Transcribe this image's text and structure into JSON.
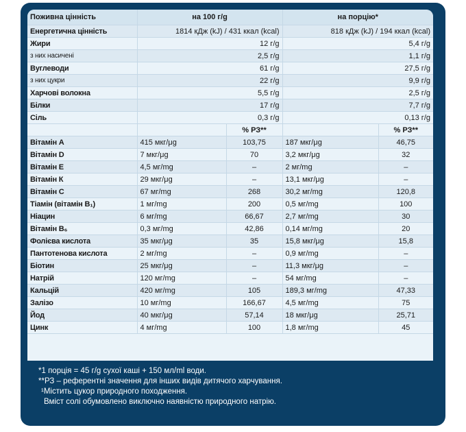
{
  "header": {
    "col1": "Поживна цінність",
    "col2": "на 100 г/g",
    "col3": "на порцію*"
  },
  "nutrients": [
    {
      "label": "Енергетична цінність",
      "per100": "1814 кДж (kJ) / 431 ккал (kcal)",
      "perServing": "818 кДж (kJ) / 194 ккал (kcal)",
      "sub": false
    },
    {
      "label": "Жири",
      "per100": "12 г/g",
      "perServing": "5,4 г/g",
      "sub": false
    },
    {
      "label": "з них насичені",
      "per100": "2,5 г/g",
      "perServing": "1,1 г/g",
      "sub": true
    },
    {
      "label": "Вуглеводи",
      "per100": "61 г/g",
      "perServing": "27,5 г/g",
      "sub": false
    },
    {
      "label": "з них цукри",
      "per100": "22 г/g",
      "perServing": "9,9 г/g",
      "sub": true
    },
    {
      "label": "Харчові волокна",
      "per100": "5,5 г/g",
      "perServing": "2,5 г/g",
      "sub": false
    },
    {
      "label": "Білки",
      "per100": "17 г/g",
      "perServing": "7,7 г/g",
      "sub": false
    },
    {
      "label": "Сіль",
      "per100": "0,3 г/g",
      "perServing": "0,13 г/g",
      "sub": false
    }
  ],
  "pct_header": {
    "label": "% РЗ**"
  },
  "vitamins": [
    {
      "label": "Вітамін А",
      "per100": "415 мкг/μg",
      "pct100": "103,75",
      "perServing": "187 мкг/μg",
      "pctServing": "46,75"
    },
    {
      "label": "Вітамін D",
      "per100": "7 мкг/μg",
      "pct100": "70",
      "perServing": "3,2 мкг/μg",
      "pctServing": "32"
    },
    {
      "label": "Вітамін Е",
      "per100": "4,5 мг/mg",
      "pct100": "–",
      "perServing": "2 мг/mg",
      "pctServing": "–"
    },
    {
      "label": "Вітамін К",
      "per100": "29 мкг/μg",
      "pct100": "–",
      "perServing": "13,1 мкг/μg",
      "pctServing": "–"
    },
    {
      "label": "Вітамін С",
      "per100": "67 мг/mg",
      "pct100": "268",
      "perServing": "30,2 мг/mg",
      "pctServing": "120,8"
    },
    {
      "label": "Тіамін (вітамін В₁)",
      "per100": "1 мг/mg",
      "pct100": "200",
      "perServing": "0,5 мг/mg",
      "pctServing": "100"
    },
    {
      "label": "Ніацин",
      "per100": "6 мг/mg",
      "pct100": "66,67",
      "perServing": "2,7 мг/mg",
      "pctServing": "30"
    },
    {
      "label": "Вітамін В₆",
      "per100": "0,3 мг/mg",
      "pct100": "42,86",
      "perServing": "0,14 мг/mg",
      "pctServing": "20"
    },
    {
      "label": "Фолієва кислота",
      "per100": "35 мкг/μg",
      "pct100": "35",
      "perServing": "15,8 мкг/μg",
      "pctServing": "15,8"
    },
    {
      "label": "Пантотенова кислота",
      "per100": "2 мг/mg",
      "pct100": "–",
      "perServing": "0,9 мг/mg",
      "pctServing": "–"
    },
    {
      "label": "Біотин",
      "per100": "25 мкг/μg",
      "pct100": "–",
      "perServing": "11,3 мкг/μg",
      "pctServing": "–"
    },
    {
      "label": "Натрій",
      "per100": "120 мг/mg",
      "pct100": "–",
      "perServing": "54 мг/mg",
      "pctServing": "–"
    },
    {
      "label": "Кальцій",
      "per100": "420 мг/mg",
      "pct100": "105",
      "perServing": "189,3 мг/mg",
      "pctServing": "47,33"
    },
    {
      "label": "Залізо",
      "per100": "10 мг/mg",
      "pct100": "166,67",
      "perServing": "4,5 мг/mg",
      "pctServing": "75"
    },
    {
      "label": "Йод",
      "per100": "40 мкг/μg",
      "pct100": "57,14",
      "perServing": "18 мкг/μg",
      "pctServing": "25,71"
    },
    {
      "label": "Цинк",
      "per100": "4 мг/mg",
      "pct100": "100",
      "perServing": "1,8 мг/mg",
      "pctServing": "45"
    }
  ],
  "footnotes": [
    "*1 порція = 45 г/g сухої каші + 150 мл/ml води.",
    "**РЗ – референтні значення для інших видів дитячого харчування.",
    "¹Містить цукор природного походження.",
    "Вміст солі обумовлено виключно наявністю природного натрію."
  ]
}
